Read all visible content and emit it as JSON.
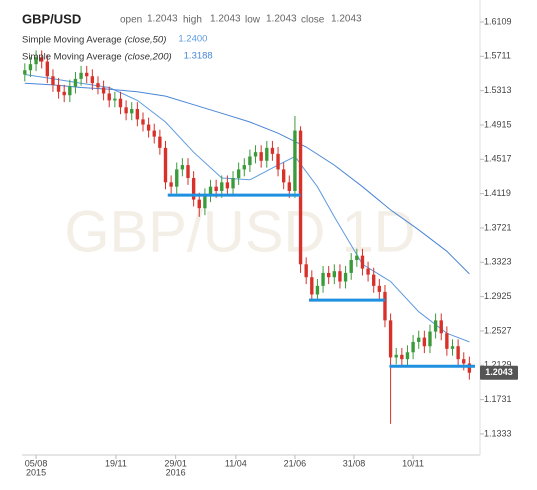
{
  "header": {
    "title": "GBP/USD",
    "fields": [
      {
        "label": "open",
        "value": 1.2043
      },
      {
        "label": "high",
        "value": 1.2043
      },
      {
        "label": "low",
        "value": 1.2043
      },
      {
        "label": "close",
        "value": 1.2043
      }
    ]
  },
  "chart_data": {
    "type": "candlestick",
    "watermark": "GBP/USD 1D",
    "xlim": [
      -0.5,
      80
    ],
    "ylim": [
      1.1089,
      1.6364
    ],
    "yticks": [
      1.6109,
      1.5711,
      1.5313,
      1.4915,
      1.4517,
      1.4119,
      1.3721,
      1.3323,
      1.2925,
      1.2527,
      1.2129,
      1.1731,
      1.1333
    ],
    "xticks": [
      {
        "value": 2,
        "label": "05/08"
      },
      {
        "value": 16.2,
        "label": "19/11"
      },
      {
        "value": 26.8,
        "label": "29/01"
      },
      {
        "value": 37.5,
        "label": "11/04"
      },
      {
        "value": 48,
        "label": "21/06"
      },
      {
        "value": 58.5,
        "label": "31/08"
      },
      {
        "value": 69,
        "label": "10/11"
      }
    ],
    "year_labels": [
      {
        "value": 2,
        "label": "2015"
      },
      {
        "value": 26.8,
        "label": "2016"
      }
    ],
    "up_color": "#3b9b3b",
    "down_color": "#d7312a",
    "open": [
      1.55,
      1.555,
      1.562,
      1.57,
      1.565,
      1.548,
      1.538,
      1.53,
      1.526,
      1.536,
      1.545,
      1.552,
      1.548,
      1.54,
      1.535,
      1.528,
      1.52,
      1.522,
      1.512,
      1.505,
      1.51,
      1.498,
      1.492,
      1.485,
      1.478,
      1.465,
      1.425,
      1.42,
      1.44,
      1.445,
      1.43,
      1.405,
      1.395,
      1.41,
      1.42,
      1.415,
      1.425,
      1.418,
      1.43,
      1.44,
      1.445,
      1.455,
      1.46,
      1.45,
      1.465,
      1.458,
      1.44,
      1.425,
      1.415,
      1.485,
      1.33,
      1.315,
      1.295,
      1.305,
      1.32,
      1.315,
      1.322,
      1.31,
      1.32,
      1.335,
      1.34,
      1.325,
      1.318,
      1.305,
      1.298,
      1.265,
      1.222,
      1.225,
      1.22,
      1.228,
      1.24,
      1.245,
      1.235,
      1.252,
      1.265,
      1.25,
      1.232,
      1.235,
      1.22,
      1.215
    ],
    "high": [
      1.563,
      1.57,
      1.578,
      1.578,
      1.573,
      1.556,
      1.546,
      1.538,
      1.544,
      1.553,
      1.56,
      1.56,
      1.556,
      1.548,
      1.543,
      1.536,
      1.53,
      1.53,
      1.52,
      1.518,
      1.518,
      1.506,
      1.5,
      1.493,
      1.486,
      1.473,
      1.433,
      1.448,
      1.453,
      1.453,
      1.438,
      1.413,
      1.418,
      1.428,
      1.428,
      1.433,
      1.433,
      1.438,
      1.448,
      1.453,
      1.463,
      1.468,
      1.468,
      1.473,
      1.473,
      1.466,
      1.448,
      1.433,
      1.502,
      1.49,
      1.338,
      1.323,
      1.313,
      1.328,
      1.328,
      1.33,
      1.33,
      1.328,
      1.343,
      1.348,
      1.348,
      1.333,
      1.326,
      1.313,
      1.306,
      1.273,
      1.233,
      1.233,
      1.236,
      1.248,
      1.253,
      1.253,
      1.26,
      1.273,
      1.273,
      1.258,
      1.243,
      1.243,
      1.228,
      1.223
    ],
    "low": [
      1.542,
      1.547,
      1.554,
      1.557,
      1.54,
      1.53,
      1.522,
      1.518,
      1.518,
      1.528,
      1.537,
      1.54,
      1.532,
      1.527,
      1.52,
      1.512,
      1.512,
      1.504,
      1.497,
      1.497,
      1.49,
      1.484,
      1.477,
      1.47,
      1.457,
      1.417,
      1.412,
      1.412,
      1.432,
      1.422,
      1.397,
      1.385,
      1.387,
      1.402,
      1.407,
      1.407,
      1.41,
      1.41,
      1.422,
      1.432,
      1.437,
      1.447,
      1.442,
      1.442,
      1.45,
      1.432,
      1.417,
      1.407,
      1.407,
      1.32,
      1.307,
      1.287,
      1.287,
      1.297,
      1.307,
      1.307,
      1.302,
      1.302,
      1.312,
      1.327,
      1.317,
      1.31,
      1.297,
      1.29,
      1.257,
      1.145,
      1.214,
      1.212,
      1.212,
      1.22,
      1.232,
      1.227,
      1.227,
      1.244,
      1.242,
      1.224,
      1.224,
      1.212,
      1.207,
      1.1963
    ],
    "close": [
      1.555,
      1.562,
      1.57,
      1.565,
      1.548,
      1.538,
      1.53,
      1.526,
      1.536,
      1.545,
      1.552,
      1.548,
      1.54,
      1.535,
      1.528,
      1.52,
      1.522,
      1.512,
      1.505,
      1.51,
      1.498,
      1.492,
      1.485,
      1.478,
      1.465,
      1.425,
      1.42,
      1.44,
      1.445,
      1.43,
      1.405,
      1.395,
      1.41,
      1.42,
      1.415,
      1.425,
      1.418,
      1.43,
      1.44,
      1.445,
      1.455,
      1.46,
      1.45,
      1.465,
      1.458,
      1.44,
      1.425,
      1.415,
      1.485,
      1.33,
      1.315,
      1.295,
      1.305,
      1.32,
      1.315,
      1.322,
      1.31,
      1.32,
      1.335,
      1.34,
      1.325,
      1.318,
      1.305,
      1.298,
      1.265,
      1.222,
      1.225,
      1.22,
      1.228,
      1.24,
      1.245,
      1.235,
      1.252,
      1.265,
      1.25,
      1.232,
      1.235,
      1.22,
      1.215,
      1.2043
    ],
    "overlays": [
      {
        "name": "Simple Moving Average",
        "params": "(close,50)",
        "value_label": "1.2400",
        "color": "#5e9be0",
        "x": [
          0,
          5,
          10,
          15,
          20,
          25,
          30,
          35,
          40,
          45,
          48,
          52,
          55,
          60,
          65,
          70,
          75,
          79
        ],
        "values": [
          1.55,
          1.545,
          1.54,
          1.535,
          1.52,
          1.495,
          1.46,
          1.43,
          1.428,
          1.445,
          1.455,
          1.42,
          1.385,
          1.33,
          1.31,
          1.275,
          1.25,
          1.24
        ]
      },
      {
        "name": "Simple Moving Average",
        "params": "(close,200)",
        "value_label": "1.3188",
        "color": "#4a86d6",
        "x": [
          0,
          5,
          10,
          15,
          20,
          25,
          30,
          35,
          40,
          45,
          50,
          55,
          60,
          65,
          70,
          75,
          79
        ],
        "values": [
          1.54,
          1.538,
          1.535,
          1.533,
          1.53,
          1.525,
          1.515,
          1.505,
          1.495,
          1.482,
          1.466,
          1.445,
          1.42,
          1.393,
          1.37,
          1.345,
          1.3188
        ]
      }
    ],
    "levels": {
      "color": "#1e90e0",
      "segments": [
        {
          "x": [
            25.4,
            49
          ],
          "value": 1.4102
        },
        {
          "x": [
            50.5,
            64
          ],
          "value": 1.2884
        },
        {
          "x": [
            64.8,
            80
          ],
          "value": 1.2118
        }
      ]
    },
    "last_price": 1.2043
  }
}
